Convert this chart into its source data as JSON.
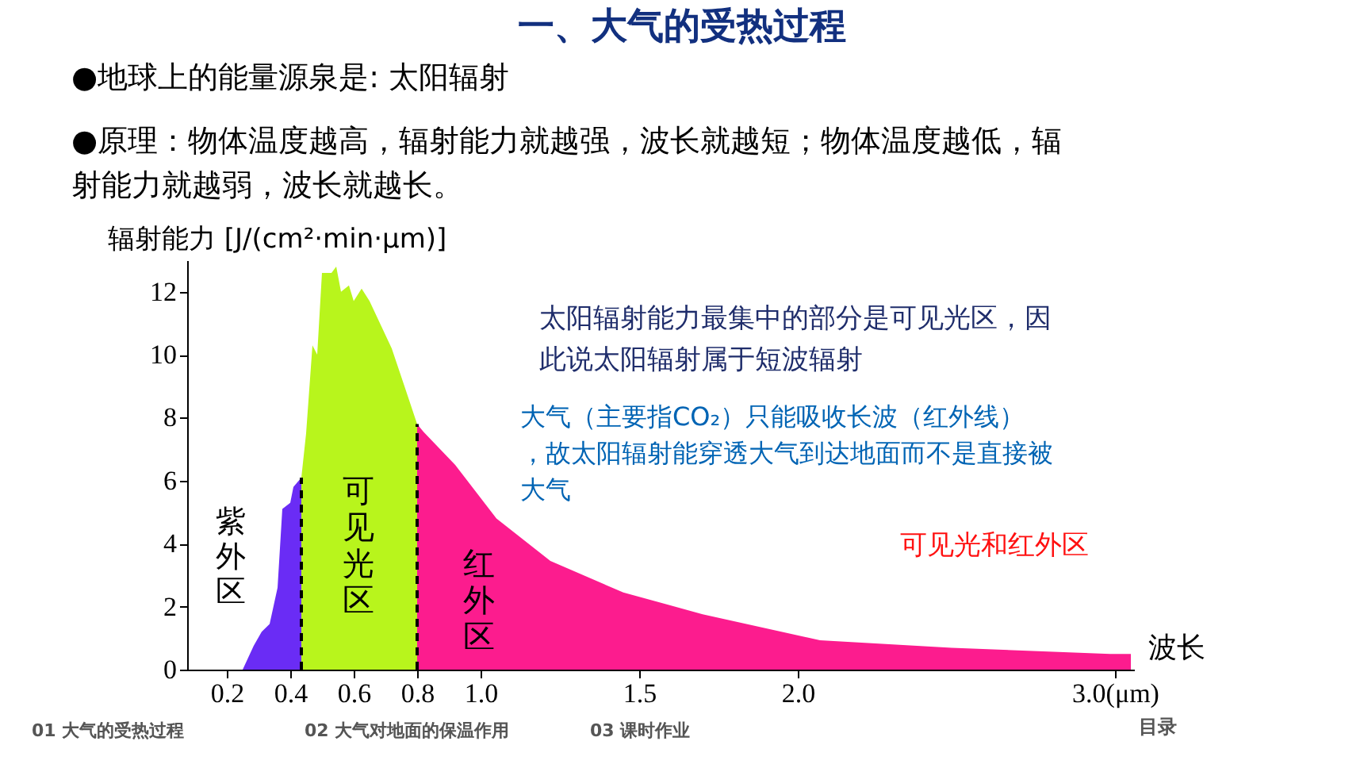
{
  "chart_data": {
    "type": "area",
    "title": "一、大气的受热过程",
    "xlabel": "波长",
    "ylabel": "辐射能力 [J/(cm²·min·μm)]",
    "xlim": [
      0.075,
      3.06
    ],
    "ylim": [
      0,
      13
    ],
    "xticks": [
      0.2,
      0.4,
      0.6,
      0.8,
      {
        "value": 1.0,
        "label": "1.0"
      },
      1.5,
      {
        "value": 2.0,
        "label": "2.0"
      },
      {
        "value": 3.0,
        "label": "3.0(μm)"
      }
    ],
    "yticks": [
      0,
      2,
      4,
      6,
      8,
      10,
      12
    ],
    "grid": false,
    "series": [
      {
        "color": "#6a2cf5",
        "x": [
          0.25,
          0.285,
          0.31,
          0.335,
          0.36,
          0.375,
          0.4,
          0.41,
          0.435
        ],
        "values": [
          0,
          0.76,
          1.2,
          1.45,
          2.6,
          5.1,
          5.3,
          5.8,
          6.1
        ]
      },
      {
        "color": "#b8f51c",
        "x": [
          0.435,
          0.45,
          0.47,
          0.485,
          0.5,
          0.53,
          0.545,
          0.56,
          0.585,
          0.6,
          0.625,
          0.65,
          0.72,
          0.8
        ],
        "values": [
          6.1,
          7.5,
          10.3,
          10.0,
          12.6,
          12.6,
          12.8,
          12.0,
          12.2,
          11.7,
          12.1,
          11.7,
          10.2,
          7.8
        ]
      },
      {
        "color": "#fc1c8e",
        "x": [
          0.8,
          0.82,
          0.92,
          1.05,
          1.22,
          1.45,
          1.7,
          2.07,
          2.485,
          2.985,
          3.05
        ],
        "values": [
          7.8,
          7.55,
          6.5,
          4.8,
          3.45,
          2.45,
          1.76,
          0.93,
          0.69,
          0.5,
          0.5
        ]
      }
    ],
    "ref_lines": [
      {
        "axis": "x",
        "value": 0.435,
        "color": "#000000",
        "line_style": "dashed"
      },
      {
        "axis": "x",
        "value": 0.8,
        "color": "#000000",
        "line_style": "dashed"
      }
    ],
    "annotations": [
      "●地球上的能量源泉是: 太阳辐射",
      "●原理：物体温度越高，辐射能力就越强，波长就越短；物体温度越低，辐射能力就越弱，波长就越长。",
      "紫外区",
      "可见光区",
      "红外区",
      "太阳辐射能力最集中的部分是可见光区，因此说太阳辐射属于短波辐射",
      "大气（主要指CO₂）只能吸收长波（红外线），故太阳辐射能穿透大气到达地面而不是直接被大气",
      "可见光和红外区",
      "01  大气的受热过程",
      "02  大气对地面的保温作用",
      "03 课时作业",
      "目录"
    ]
  }
}
